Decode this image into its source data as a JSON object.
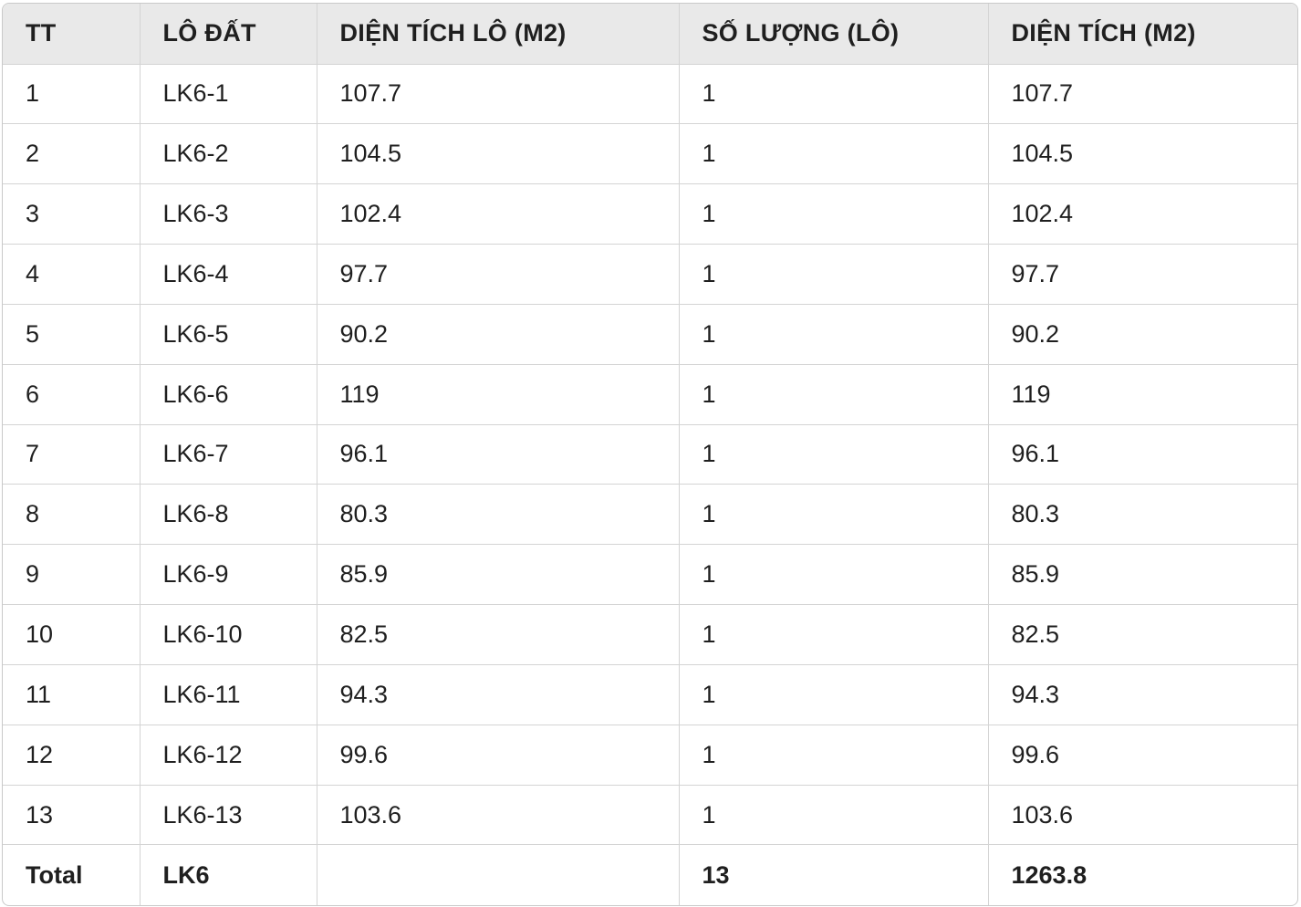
{
  "table": {
    "headers": [
      "TT",
      "LÔ ĐẤT",
      "DIỆN TÍCH LÔ (M2)",
      "SỐ LƯỢNG (LÔ)",
      "DIỆN TÍCH (M2)"
    ],
    "rows": [
      [
        "1",
        "LK6-1",
        "107.7",
        "1",
        "107.7"
      ],
      [
        "2",
        "LK6-2",
        "104.5",
        "1",
        "104.5"
      ],
      [
        "3",
        "LK6-3",
        "102.4",
        "1",
        "102.4"
      ],
      [
        "4",
        "LK6-4",
        "97.7",
        "1",
        "97.7"
      ],
      [
        "5",
        "LK6-5",
        "90.2",
        "1",
        "90.2"
      ],
      [
        "6",
        "LK6-6",
        "119",
        "1",
        "119"
      ],
      [
        "7",
        "LK6-7",
        "96.1",
        "1",
        "96.1"
      ],
      [
        "8",
        "LK6-8",
        "80.3",
        "1",
        "80.3"
      ],
      [
        "9",
        "LK6-9",
        "85.9",
        "1",
        "85.9"
      ],
      [
        "10",
        "LK6-10",
        "82.5",
        "1",
        "82.5"
      ],
      [
        "11",
        "LK6-11",
        "94.3",
        "1",
        "94.3"
      ],
      [
        "12",
        "LK6-12",
        "99.6",
        "1",
        "99.6"
      ],
      [
        "13",
        "LK6-13",
        "103.6",
        "1",
        "103.6"
      ]
    ],
    "total": [
      "Total",
      "LK6",
      "",
      "13",
      "1263.8"
    ]
  }
}
